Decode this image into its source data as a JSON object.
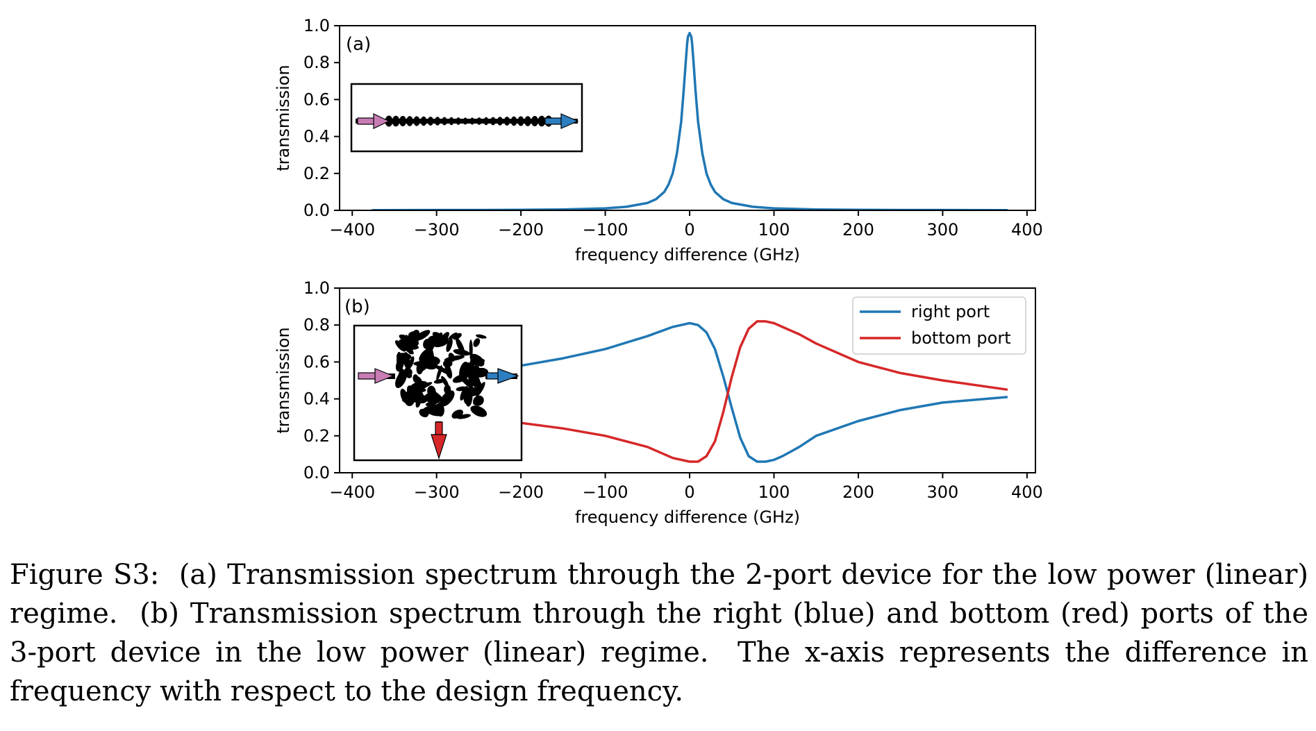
{
  "chart_data": [
    {
      "type": "line",
      "panel_label": "(a)",
      "xlabel": "frequency difference (GHz)",
      "ylabel": "transmission",
      "xlim": [
        -415,
        410
      ],
      "ylim": [
        0,
        1.0
      ],
      "xticks": [
        -400,
        -300,
        -200,
        -100,
        0,
        100,
        200,
        300,
        400
      ],
      "xtick_labels": [
        "−400",
        "−300",
        "−200",
        "−100",
        "0",
        "100",
        "200",
        "300",
        "400"
      ],
      "yticks": [
        0.0,
        0.2,
        0.4,
        0.6,
        0.8,
        1.0
      ],
      "ytick_labels": [
        "0.0",
        "0.2",
        "0.4",
        "0.6",
        "0.8",
        "1.0"
      ],
      "grid": false,
      "series": [
        {
          "color": "#1f77b4",
          "x": [
            -377,
            -300,
            -250,
            -200,
            -150,
            -100,
            -75,
            -50,
            -40,
            -30,
            -25,
            -20,
            -15,
            -10,
            -7,
            -5,
            -3,
            -2,
            0,
            2,
            3,
            5,
            7,
            10,
            15,
            20,
            25,
            30,
            40,
            50,
            75,
            100,
            150,
            200,
            250,
            300,
            377
          ],
          "y": [
            0.001,
            0.002,
            0.002,
            0.003,
            0.005,
            0.011,
            0.019,
            0.04,
            0.06,
            0.1,
            0.14,
            0.2,
            0.31,
            0.48,
            0.65,
            0.78,
            0.9,
            0.94,
            0.96,
            0.94,
            0.9,
            0.78,
            0.65,
            0.48,
            0.31,
            0.2,
            0.14,
            0.1,
            0.06,
            0.04,
            0.019,
            0.011,
            0.005,
            0.003,
            0.002,
            0.002,
            0.001
          ]
        }
      ],
      "inset": {
        "input_arrow_color": "#c77cb4",
        "output_arrow_color": "#2d7ec0"
      }
    },
    {
      "type": "line",
      "panel_label": "(b)",
      "xlabel": "frequency difference (GHz)",
      "ylabel": "transmission",
      "xlim": [
        -415,
        410
      ],
      "ylim": [
        0,
        1.0
      ],
      "xticks": [
        -400,
        -300,
        -200,
        -100,
        0,
        100,
        200,
        300,
        400
      ],
      "xtick_labels": [
        "−400",
        "−300",
        "−200",
        "−100",
        "0",
        "100",
        "200",
        "300",
        "400"
      ],
      "yticks": [
        0.0,
        0.2,
        0.4,
        0.6,
        0.8,
        1.0
      ],
      "ytick_labels": [
        "0.0",
        "0.2",
        "0.4",
        "0.6",
        "0.8",
        "1.0"
      ],
      "grid": false,
      "legend_position": "top-right",
      "series": [
        {
          "name": "right port",
          "color": "#1f77b4",
          "x": [
            -200,
            -150,
            -100,
            -50,
            -20,
            0,
            10,
            20,
            30,
            40,
            50,
            60,
            70,
            80,
            90,
            100,
            110,
            130,
            150,
            200,
            250,
            300,
            377
          ],
          "y": [
            0.58,
            0.62,
            0.67,
            0.74,
            0.79,
            0.81,
            0.8,
            0.76,
            0.67,
            0.52,
            0.35,
            0.19,
            0.09,
            0.06,
            0.06,
            0.07,
            0.09,
            0.14,
            0.2,
            0.28,
            0.34,
            0.38,
            0.41
          ]
        },
        {
          "name": "bottom port",
          "color": "#d62728",
          "x": [
            -200,
            -150,
            -100,
            -50,
            -20,
            0,
            10,
            20,
            30,
            40,
            50,
            60,
            70,
            80,
            90,
            100,
            110,
            130,
            150,
            200,
            250,
            300,
            377
          ],
          "y": [
            0.27,
            0.24,
            0.2,
            0.14,
            0.08,
            0.06,
            0.06,
            0.09,
            0.17,
            0.33,
            0.52,
            0.68,
            0.78,
            0.82,
            0.82,
            0.81,
            0.79,
            0.75,
            0.7,
            0.6,
            0.54,
            0.5,
            0.45
          ]
        }
      ],
      "inset": {
        "input_arrow_color": "#c77cb4",
        "output_arrow_color": "#2d7ec0",
        "bottom_arrow_color": "#d62728"
      }
    }
  ],
  "caption": "Figure S3:  (a) Transmission spectrum through the 2-port device for the low power (linear) regime.  (b) Transmission spectrum through the right (blue) and bottom (red) ports of the 3-port device in the low power (linear) regime.  The x-axis represents the difference in frequency with respect to the design frequency."
}
